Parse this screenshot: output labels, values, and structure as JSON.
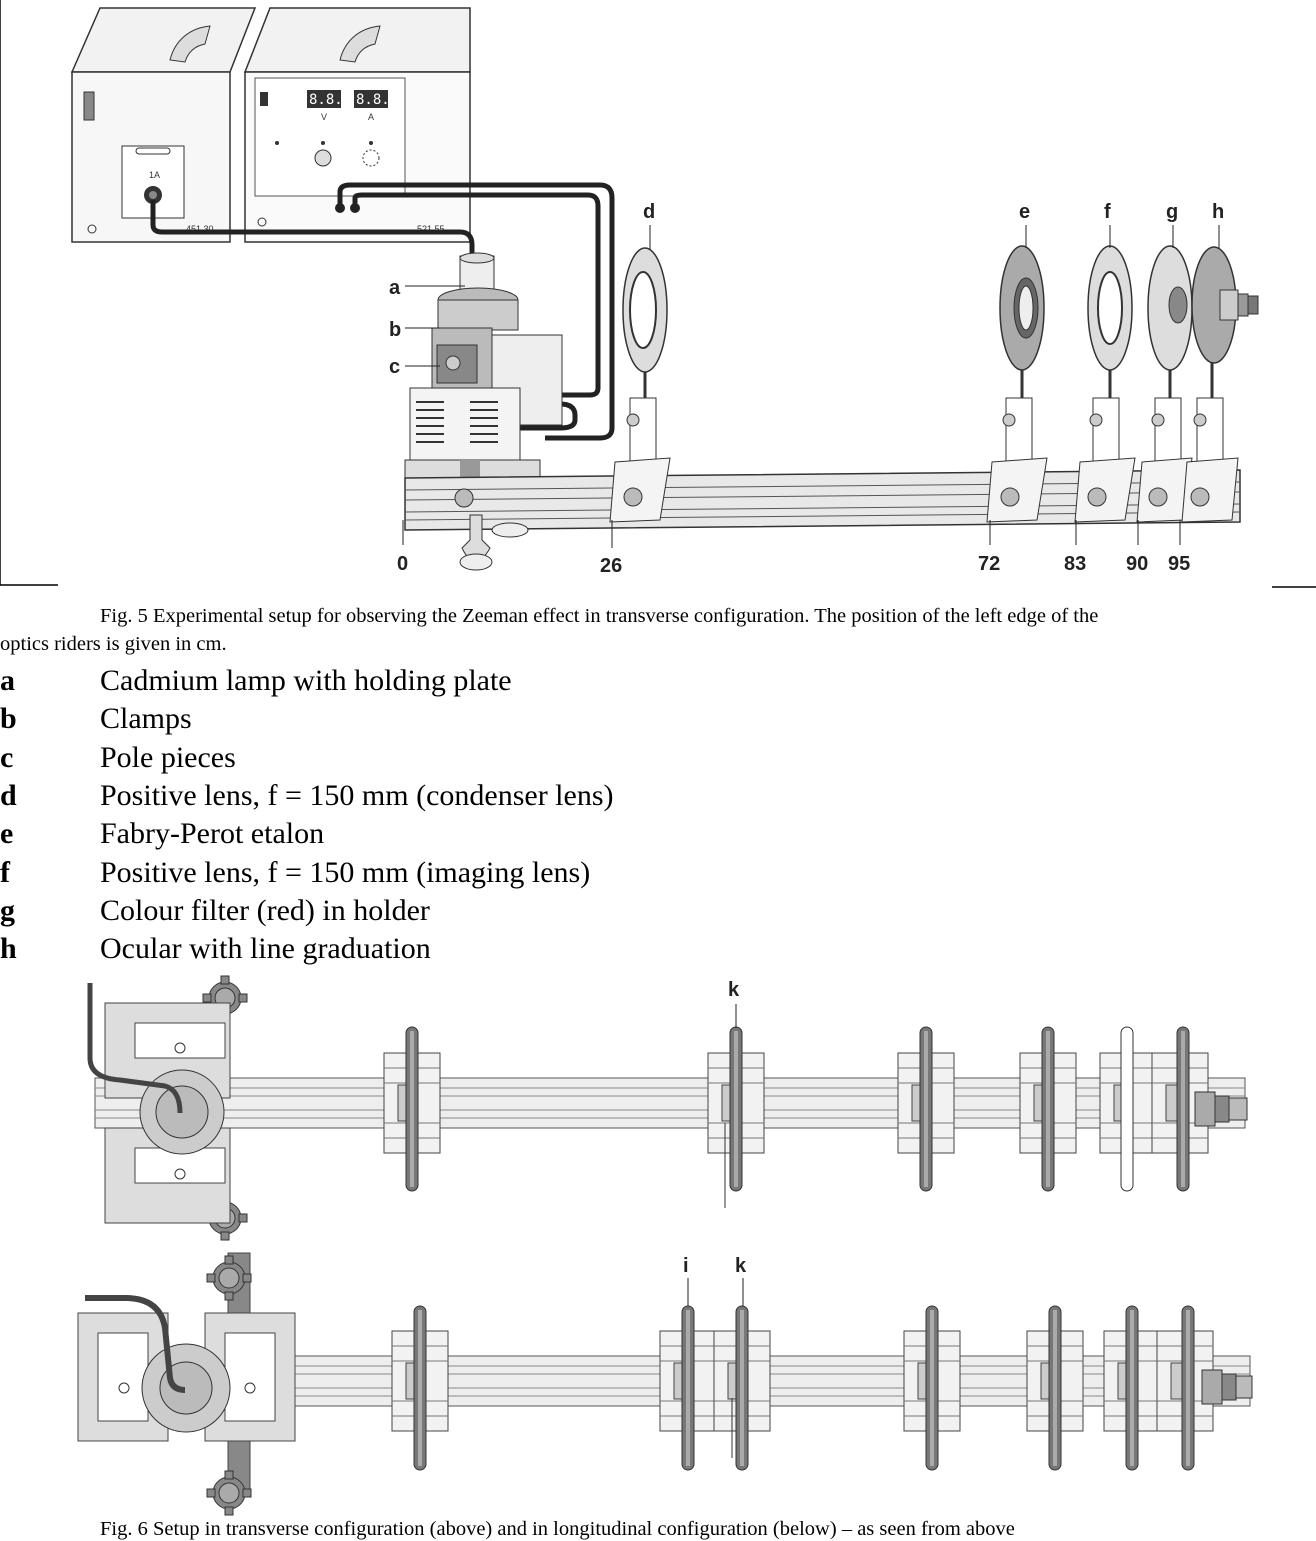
{
  "figure5": {
    "labels": {
      "a": "a",
      "b": "b",
      "c": "c",
      "d": "d",
      "e": "e",
      "f": "f",
      "g": "g",
      "h": "h"
    },
    "positions": [
      "0",
      "26",
      "72",
      "83",
      "90",
      "95"
    ],
    "device_left": {
      "fuse": "1A",
      "model": "451 30"
    },
    "device_right": {
      "v_label": "V",
      "a_label": "A",
      "model": "521 55",
      "display_v": "8.8.8",
      "display_a": "8.8.8"
    }
  },
  "caption": {
    "line1": "Fig. 5 Experimental setup for observing the Zeeman effect in transverse configuration. The position of the left edge of the",
    "line2": "optics riders is given in cm."
  },
  "legend": [
    {
      "key": "a",
      "text": "Cadmium lamp with holding plate"
    },
    {
      "key": "b",
      "text": "Clamps"
    },
    {
      "key": "c",
      "text": "Pole pieces"
    },
    {
      "key": "d",
      "text": "Positive lens, f = 150 mm (condenser lens)"
    },
    {
      "key": "e",
      "text": "Fabry-Perot etalon"
    },
    {
      "key": "f",
      "text": "Positive lens, f = 150 mm (imaging lens)"
    },
    {
      "key": "g",
      "text": "Colour filter (red) in holder"
    },
    {
      "key": "h",
      "text": "Ocular with line graduation"
    }
  ],
  "figure6": {
    "top_label_k": "k",
    "bottom_label_i": "i",
    "bottom_label_k": "k"
  },
  "bottom_caption": "Fig. 6 Setup in transverse configuration (above) and in longitudinal configuration (below) – as seen from above"
}
